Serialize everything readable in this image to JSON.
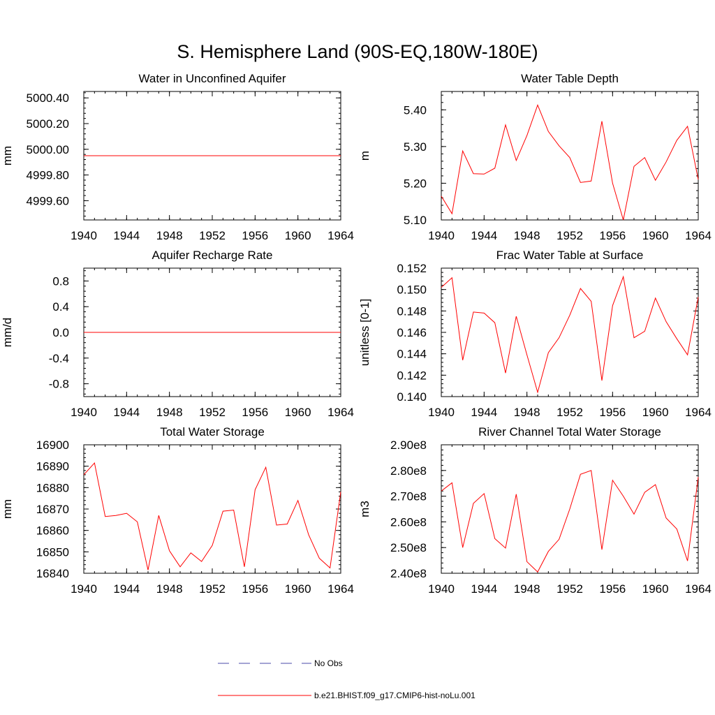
{
  "page_title": "S. Hemisphere Land (90S-EQ,180W-180E)",
  "colors": {
    "model": "#ff0000",
    "obs": "#4a4aa8",
    "axis": "#000000"
  },
  "legend": {
    "obs_label": "No Obs",
    "model_label": "b.e21.BHIST.f09_g17.CMIP6-hist-noLu.001"
  },
  "chart_data": [
    {
      "type": "line",
      "title": "Water in Unconfined Aquifer",
      "ylabel": "mm",
      "xlim": [
        1940,
        1964
      ],
      "ylim": [
        4999.45,
        5000.45
      ],
      "xticks": [
        1940,
        1944,
        1948,
        1952,
        1956,
        1960,
        1964
      ],
      "yticks": [
        4999.6,
        4999.8,
        5000.0,
        5000.2,
        5000.4
      ],
      "ytick_labels": [
        "4999.60",
        "4999.80",
        "5000.00",
        "5000.20",
        "5000.40"
      ],
      "x": [
        1940,
        1941,
        1942,
        1943,
        1944,
        1945,
        1946,
        1947,
        1948,
        1949,
        1950,
        1951,
        1952,
        1953,
        1954,
        1955,
        1956,
        1957,
        1958,
        1959,
        1960,
        1961,
        1962,
        1963,
        1964
      ],
      "series": [
        {
          "name": "b.e21.BHIST.f09_g17.CMIP6-hist-noLu.001",
          "values": [
            4999.95,
            4999.95,
            4999.95,
            4999.95,
            4999.95,
            4999.95,
            4999.95,
            4999.95,
            4999.95,
            4999.95,
            4999.95,
            4999.95,
            4999.95,
            4999.95,
            4999.95,
            4999.95,
            4999.95,
            4999.95,
            4999.95,
            4999.95,
            4999.95,
            4999.95,
            4999.95,
            4999.95,
            4999.95
          ]
        }
      ]
    },
    {
      "type": "line",
      "title": "Water Table Depth",
      "ylabel": "m",
      "xlim": [
        1940,
        1964
      ],
      "ylim": [
        5.1,
        5.45
      ],
      "xticks": [
        1940,
        1944,
        1948,
        1952,
        1956,
        1960,
        1964
      ],
      "yticks": [
        5.1,
        5.2,
        5.3,
        5.4
      ],
      "ytick_labels": [
        "5.10",
        "5.20",
        "5.30",
        "5.40"
      ],
      "x": [
        1940,
        1941,
        1942,
        1943,
        1944,
        1945,
        1946,
        1947,
        1948,
        1949,
        1950,
        1951,
        1952,
        1953,
        1954,
        1955,
        1956,
        1957,
        1958,
        1959,
        1960,
        1961,
        1962,
        1963,
        1964
      ],
      "series": [
        {
          "name": "b.e21.BHIST.f09_g17.CMIP6-hist-noLu.001",
          "values": [
            5.165,
            5.117,
            5.288,
            5.226,
            5.225,
            5.241,
            5.359,
            5.262,
            5.33,
            5.413,
            5.341,
            5.302,
            5.27,
            5.202,
            5.206,
            5.369,
            5.2,
            5.1,
            5.246,
            5.27,
            5.208,
            5.258,
            5.317,
            5.355,
            5.21
          ]
        }
      ]
    },
    {
      "type": "line",
      "title": "Aquifer Recharge Rate",
      "ylabel": "mm/d",
      "xlim": [
        1940,
        1964
      ],
      "ylim": [
        -1.0,
        1.0
      ],
      "xticks": [
        1940,
        1944,
        1948,
        1952,
        1956,
        1960,
        1964
      ],
      "yticks": [
        -0.8,
        -0.4,
        0.0,
        0.4,
        0.8
      ],
      "ytick_labels": [
        "-0.8",
        "-0.4",
        "0.0",
        "0.4",
        "0.8"
      ],
      "x": [
        1940,
        1941,
        1942,
        1943,
        1944,
        1945,
        1946,
        1947,
        1948,
        1949,
        1950,
        1951,
        1952,
        1953,
        1954,
        1955,
        1956,
        1957,
        1958,
        1959,
        1960,
        1961,
        1962,
        1963,
        1964
      ],
      "series": [
        {
          "name": "b.e21.BHIST.f09_g17.CMIP6-hist-noLu.001",
          "values": [
            0,
            0,
            0,
            0,
            0,
            0,
            0,
            0,
            0,
            0,
            0,
            0,
            0,
            0,
            0,
            0,
            0,
            0,
            0,
            0,
            0,
            0,
            0,
            0,
            0
          ]
        }
      ]
    },
    {
      "type": "line",
      "title": "Frac Water Table at Surface",
      "ylabel": "unitless [0-1]",
      "xlim": [
        1940,
        1964
      ],
      "ylim": [
        0.14,
        0.152
      ],
      "xticks": [
        1940,
        1944,
        1948,
        1952,
        1956,
        1960,
        1964
      ],
      "yticks": [
        0.14,
        0.142,
        0.144,
        0.146,
        0.148,
        0.15,
        0.152
      ],
      "ytick_labels": [
        "0.140",
        "0.142",
        "0.144",
        "0.146",
        "0.148",
        "0.150",
        "0.152"
      ],
      "x": [
        1940,
        1941,
        1942,
        1943,
        1944,
        1945,
        1946,
        1947,
        1948,
        1949,
        1950,
        1951,
        1952,
        1953,
        1954,
        1955,
        1956,
        1957,
        1958,
        1959,
        1960,
        1961,
        1962,
        1963,
        1964
      ],
      "series": [
        {
          "name": "b.e21.BHIST.f09_g17.CMIP6-hist-noLu.001",
          "values": [
            0.1502,
            0.1511,
            0.1434,
            0.1479,
            0.1478,
            0.1469,
            0.1422,
            0.1475,
            0.1439,
            0.1404,
            0.1441,
            0.1455,
            0.1476,
            0.1501,
            0.1489,
            0.1415,
            0.1485,
            0.1512,
            0.1455,
            0.1461,
            0.1492,
            0.147,
            0.1454,
            0.1439,
            0.1493
          ]
        }
      ]
    },
    {
      "type": "line",
      "title": "Total Water Storage",
      "ylabel": "mm",
      "xlim": [
        1940,
        1964
      ],
      "ylim": [
        16840,
        16900
      ],
      "xticks": [
        1940,
        1944,
        1948,
        1952,
        1956,
        1960,
        1964
      ],
      "yticks": [
        16840,
        16850,
        16860,
        16870,
        16880,
        16890,
        16900
      ],
      "ytick_labels": [
        "16840",
        "16850",
        "16860",
        "16870",
        "16880",
        "16890",
        "16900"
      ],
      "x": [
        1940,
        1941,
        1942,
        1943,
        1944,
        1945,
        1946,
        1947,
        1948,
        1949,
        1950,
        1951,
        1952,
        1953,
        1954,
        1955,
        1956,
        1957,
        1958,
        1959,
        1960,
        1961,
        1962,
        1963,
        1964
      ],
      "series": [
        {
          "name": "b.e21.BHIST.f09_g17.CMIP6-hist-noLu.001",
          "values": [
            16886,
            16891.5,
            16866.5,
            16867,
            16868,
            16864,
            16841.5,
            16867,
            16850.5,
            16843,
            16849.5,
            16845.5,
            16853,
            16869,
            16869.5,
            16843,
            16879,
            16889.5,
            16862.5,
            16863,
            16874,
            16858,
            16847,
            16842.5,
            16878
          ]
        }
      ]
    },
    {
      "type": "line",
      "title": "River Channel Total Water Storage",
      "ylabel": "m3",
      "xlim": [
        1940,
        1964
      ],
      "ylim": [
        240000000.0,
        290000000.0
      ],
      "xticks": [
        1940,
        1944,
        1948,
        1952,
        1956,
        1960,
        1964
      ],
      "yticks": [
        240000000.0,
        250000000.0,
        260000000.0,
        270000000.0,
        280000000.0,
        290000000.0
      ],
      "ytick_labels": [
        "2.40e8",
        "2.50e8",
        "2.60e8",
        "2.70e8",
        "2.80e8",
        "2.90e8"
      ],
      "x": [
        1940,
        1941,
        1942,
        1943,
        1944,
        1945,
        1946,
        1947,
        1948,
        1949,
        1950,
        1951,
        1952,
        1953,
        1954,
        1955,
        1956,
        1957,
        1958,
        1959,
        1960,
        1961,
        1962,
        1963,
        1964
      ],
      "series": [
        {
          "name": "b.e21.BHIST.f09_g17.CMIP6-hist-noLu.001",
          "values": [
            272000000.0,
            275200000.0,
            250000000.0,
            267200000.0,
            271000000.0,
            253500000.0,
            249800000.0,
            270800000.0,
            244500000.0,
            240500000.0,
            248500000.0,
            253200000.0,
            265000000.0,
            278500000.0,
            280000000.0,
            249200000.0,
            276200000.0,
            270000000.0,
            263000000.0,
            271500000.0,
            274500000.0,
            261500000.0,
            257200000.0,
            244800000.0,
            277500000.0
          ]
        }
      ]
    }
  ]
}
